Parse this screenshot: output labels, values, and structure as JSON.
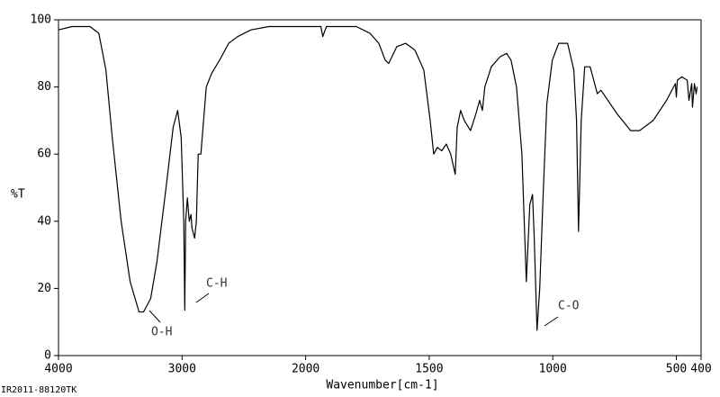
{
  "chart_data": {
    "type": "line",
    "y_label": "%T",
    "x_label": "Wavenumber[cm-1]",
    "footnote": "IR2011-88120TK",
    "annotations": [
      "O-H",
      "C-H",
      "C-O"
    ],
    "xlim": [
      4000,
      400
    ],
    "ylim": [
      0,
      100
    ],
    "x_scale_change_at": 2000,
    "x_scale_ratio_below": 2,
    "xticks": [
      4000,
      3000,
      2000,
      1500,
      1000,
      500,
      400
    ],
    "yticks": [
      0,
      20,
      40,
      60,
      80,
      100
    ],
    "color": "#000000",
    "x": [
      4000,
      3891,
      3746,
      3674,
      3616,
      3565,
      3493,
      3420,
      3348,
      3312,
      3254,
      3203,
      3130,
      3072,
      3036,
      3007,
      2986,
      2978,
      2971,
      2957,
      2942,
      2928,
      2920,
      2899,
      2884,
      2870,
      2848,
      2804,
      2761,
      2696,
      2623,
      2551,
      2442,
      2297,
      2152,
      2000,
      1938,
      1931,
      1916,
      1795,
      1740,
      1704,
      1678,
      1664,
      1631,
      1595,
      1558,
      1522,
      1496,
      1482,
      1467,
      1449,
      1431,
      1413,
      1395,
      1387,
      1373,
      1358,
      1333,
      1311,
      1296,
      1285,
      1275,
      1249,
      1213,
      1187,
      1169,
      1147,
      1125,
      1107,
      1093,
      1082,
      1075,
      1064,
      1053,
      1038,
      1024,
      1002,
      976,
      940,
      915,
      904,
      896,
      885,
      871,
      849,
      820,
      805,
      740,
      685,
      649,
      594,
      540,
      504,
      500,
      496,
      478,
      456,
      449,
      438,
      435,
      427,
      420,
      416
    ],
    "values": [
      97,
      98,
      98,
      96,
      85,
      65,
      40,
      22,
      13,
      13,
      17,
      28,
      50,
      68,
      73,
      65,
      40,
      13.5,
      40,
      47,
      40,
      42,
      38,
      35,
      40,
      60,
      60,
      80,
      84,
      88,
      93,
      95,
      97,
      98,
      98,
      98,
      98,
      95,
      98,
      98,
      96,
      93,
      88,
      87,
      92,
      93,
      91,
      85,
      70,
      60,
      62,
      61,
      63,
      60,
      54,
      68,
      73,
      70,
      67,
      72,
      76,
      73,
      80,
      86,
      89,
      90,
      88,
      80,
      60,
      22,
      45,
      48,
      35,
      7.5,
      20,
      50,
      75,
      88,
      93,
      93,
      85,
      70,
      37,
      70,
      86,
      86,
      78,
      79,
      72,
      67,
      67,
      70,
      76,
      81,
      77,
      82,
      83,
      82,
      76,
      81,
      74,
      81,
      78,
      80
    ]
  }
}
